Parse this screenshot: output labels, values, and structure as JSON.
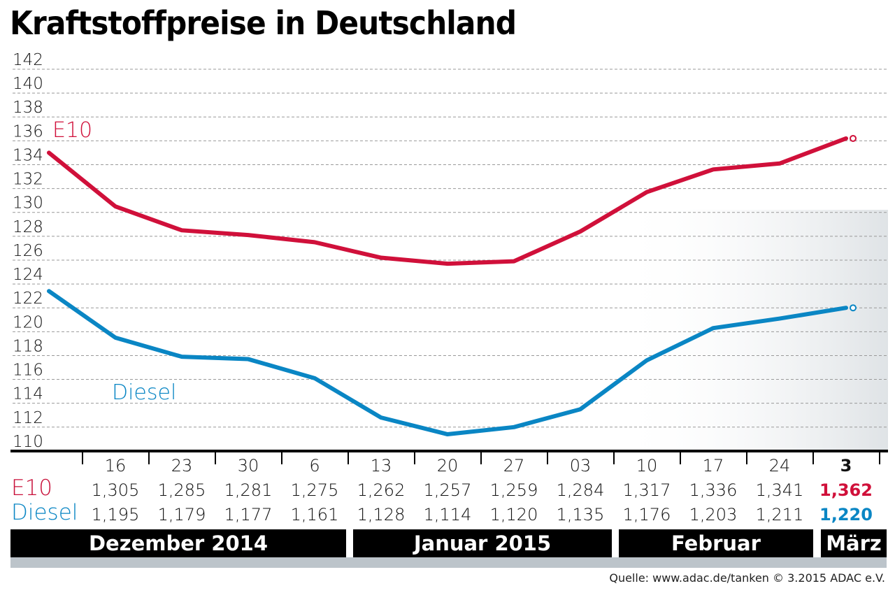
{
  "title": "Kraftstoffpreise in Deutschland",
  "source": "Quelle: www.adac.de/tanken   © 3.2015  ADAC e.V.",
  "chart_data": {
    "type": "line",
    "title": "Kraftstoffpreise in Deutschland",
    "ylim": [
      110,
      142
    ],
    "yticks": [
      "110",
      "112",
      "114",
      "116",
      "118",
      "120",
      "122",
      "124",
      "126",
      "128",
      "130",
      "132",
      "134",
      "136",
      "138",
      "140",
      "142"
    ],
    "grid": "dashed horizontal",
    "categories": [
      "16",
      "23",
      "30",
      "6",
      "13",
      "20",
      "27",
      "03",
      "10",
      "17",
      "24",
      "3"
    ],
    "months": [
      "Dezember 2014",
      "Januar 2015",
      "Februar",
      "März"
    ],
    "series": [
      {
        "name": "E10",
        "color": "#d0103a",
        "initial_value": 135.0,
        "values": [
          130.5,
          128.5,
          128.1,
          127.5,
          126.2,
          125.7,
          125.9,
          128.4,
          131.7,
          133.6,
          134.1,
          136.2
        ],
        "table": [
          "1,305",
          "1,285",
          "1,281",
          "1,275",
          "1,262",
          "1,257",
          "1,259",
          "1,284",
          "1,317",
          "1,336",
          "1,341",
          "1,362"
        ]
      },
      {
        "name": "Diesel",
        "color": "#0a86c4",
        "initial_value": 123.4,
        "values": [
          119.5,
          117.9,
          117.7,
          116.1,
          112.8,
          111.4,
          112.0,
          113.5,
          117.6,
          120.3,
          121.1,
          122.0
        ],
        "table": [
          "1,195",
          "1,179",
          "1,177",
          "1,161",
          "1,128",
          "1,114",
          "1,120",
          "1,135",
          "1,176",
          "1,203",
          "1,211",
          "1,220"
        ]
      }
    ]
  }
}
